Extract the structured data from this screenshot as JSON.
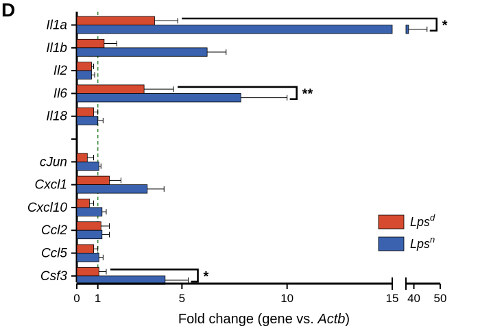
{
  "chart_data": {
    "type": "bar",
    "orientation": "horizontal",
    "panel_label": "D",
    "categories": [
      "Il1a",
      "Il1b",
      "Il2",
      "Il6",
      "Il18",
      "",
      "cJun",
      "Cxcl1",
      "Cxcl10",
      "Ccl2",
      "Ccl5",
      "Csf3"
    ],
    "series": [
      {
        "name": "Lps",
        "superscript": "d",
        "color": "#d64a30",
        "values": [
          3.7,
          1.3,
          0.7,
          3.2,
          0.8,
          null,
          0.5,
          1.55,
          0.6,
          1.15,
          0.8,
          1.05
        ],
        "errors": [
          1.1,
          0.6,
          0.1,
          1.4,
          0.2,
          null,
          0.3,
          0.55,
          0.2,
          0.4,
          0.2,
          0.35
        ]
      },
      {
        "name": "Lps",
        "superscript": "n",
        "color": "#3a62ae",
        "values": [
          38.0,
          6.2,
          0.7,
          7.8,
          1.0,
          null,
          1.05,
          3.35,
          1.2,
          1.2,
          1.05,
          4.2
        ],
        "errors": [
          7.0,
          0.9,
          0.15,
          2.2,
          0.25,
          null,
          0.1,
          0.8,
          0.2,
          0.35,
          0.2,
          1.1
        ]
      }
    ],
    "reference_line": 1,
    "x_ticks": [
      "0",
      "1",
      "5",
      "10",
      "15",
      "40",
      "50"
    ],
    "xlim": [
      0,
      50
    ],
    "x_axis_break": [
      15,
      37
    ],
    "xlabel_prefix": "Fold change (gene vs. ",
    "xlabel_italic": "Actb",
    "xlabel_suffix": ")",
    "significance": [
      {
        "category": "Il1a",
        "label": "*"
      },
      {
        "category": "Il6",
        "label": "**"
      },
      {
        "category": "Csf3",
        "label": "*"
      }
    ],
    "legend_position": "right"
  }
}
